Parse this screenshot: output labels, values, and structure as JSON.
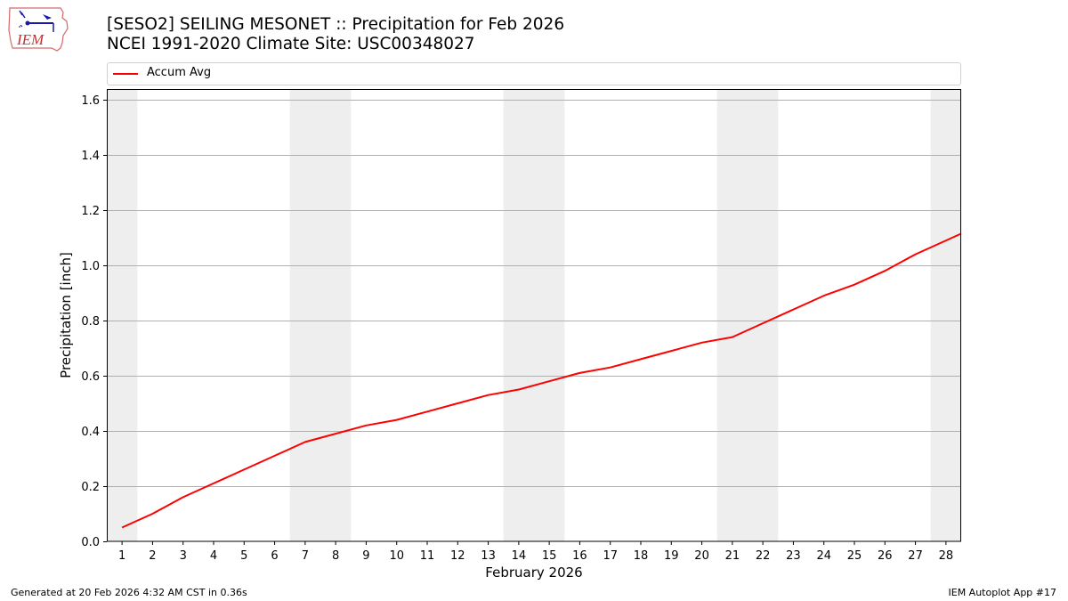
{
  "header": {
    "title_line1": "[SESO2] SEILING MESONET :: Precipitation for Feb 2026",
    "title_line2": "NCEI 1991-2020 Climate Site: USC00348027",
    "logo_text": "IEM"
  },
  "legend": {
    "items": [
      {
        "label": "Accum Avg",
        "color": "#ff0000"
      }
    ]
  },
  "footer": {
    "left": "Generated at 20 Feb 2026 4:32 AM CST in 0.36s",
    "right": "IEM Autoplot App #17"
  },
  "colors": {
    "line": "#ff0000",
    "weekend_band": "#eeeeee",
    "grid": "#b0b0b0"
  },
  "chart_data": {
    "type": "line",
    "title": "[SESO2] SEILING MESONET :: Precipitation for Feb 2026",
    "subtitle": "NCEI 1991-2020 Climate Site: USC00348027",
    "xlabel": "February 2026",
    "ylabel": "Precipitation [inch]",
    "xlim": [
      0.5,
      28.5
    ],
    "ylim": [
      0,
      1.64
    ],
    "yticks": [
      0.0,
      0.2,
      0.4,
      0.6,
      0.8,
      1.0,
      1.2,
      1.4,
      1.6
    ],
    "ytick_labels": [
      "0.0",
      "0.2",
      "0.4",
      "0.6",
      "0.8",
      "1.0",
      "1.2",
      "1.4",
      "1.6"
    ],
    "x": [
      1,
      2,
      3,
      4,
      5,
      6,
      7,
      8,
      9,
      10,
      11,
      12,
      13,
      14,
      15,
      16,
      17,
      18,
      19,
      20,
      21,
      22,
      23,
      24,
      25,
      26,
      27,
      28
    ],
    "xtick_labels": [
      "1",
      "2",
      "3",
      "4",
      "5",
      "6",
      "7",
      "8",
      "9",
      "10",
      "11",
      "12",
      "13",
      "14",
      "15",
      "16",
      "17",
      "18",
      "19",
      "20",
      "21",
      "22",
      "23",
      "24",
      "25",
      "26",
      "27",
      "28"
    ],
    "grid": "y-axis horizontal",
    "legend_position": "top, above plot",
    "weekend_bands": [
      [
        0.5,
        1.5
      ],
      [
        6.5,
        8.5
      ],
      [
        13.5,
        15.5
      ],
      [
        20.5,
        22.5
      ],
      [
        27.5,
        28.5
      ]
    ],
    "series": [
      {
        "name": "Accum Avg",
        "color": "#ff0000",
        "values": [
          0.05,
          0.1,
          0.16,
          0.21,
          0.26,
          0.31,
          0.36,
          0.39,
          0.42,
          0.44,
          0.47,
          0.5,
          0.53,
          0.55,
          0.58,
          0.61,
          0.63,
          0.66,
          0.69,
          0.72,
          0.74,
          0.79,
          0.84,
          0.89,
          0.93,
          0.98,
          1.04,
          1.09
        ],
        "end_value_at_x_28_5": 1.115
      }
    ]
  }
}
